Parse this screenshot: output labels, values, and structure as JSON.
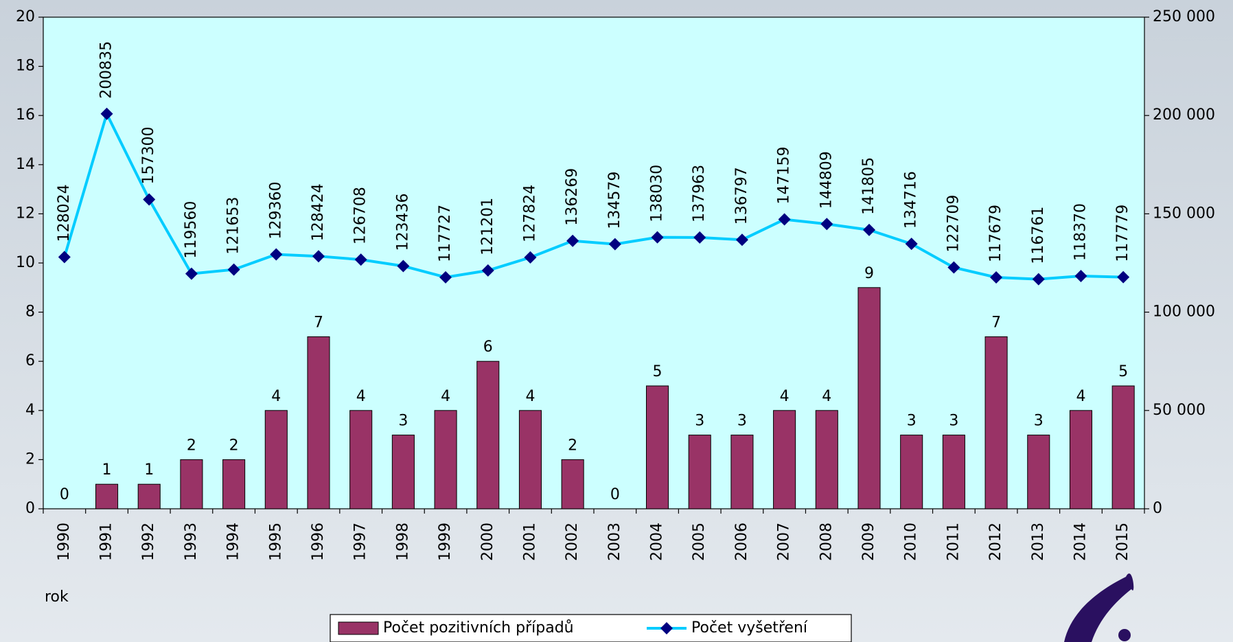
{
  "chart_data": {
    "type": "bar_line",
    "x_label": "rok",
    "categories": [
      "1990",
      "1991",
      "1992",
      "1993",
      "1994",
      "1995",
      "1996",
      "1997",
      "1998",
      "1999",
      "2000",
      "2001",
      "2002",
      "2003",
      "2004",
      "2005",
      "2006",
      "2007",
      "2008",
      "2009",
      "2010",
      "2011",
      "2012",
      "2013",
      "2014",
      "2015"
    ],
    "series": [
      {
        "name": "Počet pozitivních případů",
        "type": "bar",
        "color": "#993366",
        "axis": "y",
        "values": [
          0,
          1,
          1,
          2,
          2,
          4,
          7,
          4,
          3,
          4,
          6,
          4,
          2,
          0,
          5,
          3,
          3,
          4,
          4,
          9,
          3,
          3,
          7,
          3,
          4,
          5
        ]
      },
      {
        "name": "Počet vyšetření",
        "type": "line",
        "color": "#00ccff",
        "marker_color": "#000080",
        "axis": "y2",
        "values": [
          128024,
          200835,
          157300,
          119560,
          121653,
          129360,
          128424,
          126708,
          123436,
          117727,
          121201,
          127824,
          136269,
          134579,
          138030,
          137963,
          136797,
          147159,
          144809,
          141805,
          134716,
          122709,
          117679,
          116761,
          118370,
          117779
        ]
      }
    ],
    "ylim": [
      0,
      20
    ],
    "yticks": [
      0,
      2,
      4,
      6,
      8,
      10,
      12,
      14,
      16,
      18,
      20
    ],
    "y2lim": [
      0,
      250000
    ],
    "y2ticks": [
      0,
      {
        "value": 50000,
        "label": "50 000"
      },
      {
        "value": 100000,
        "label": "100 000"
      },
      {
        "value": 150000,
        "label": "150 000"
      },
      {
        "value": 200000,
        "label": "200 000"
      },
      {
        "value": 250000,
        "label": "250 000"
      }
    ],
    "plot_background": "#ccffff",
    "legend": "bottom"
  }
}
